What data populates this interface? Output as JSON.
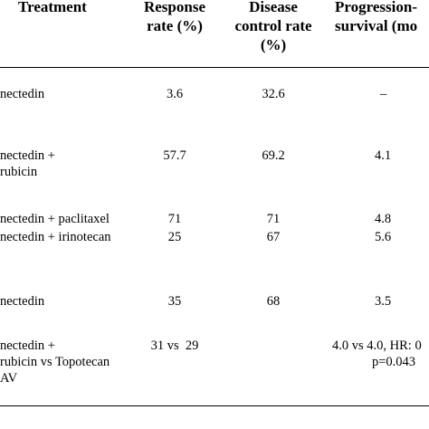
{
  "table": {
    "headers": {
      "treatment": "Treatment",
      "response_rate": [
        "Response",
        "rate (%)"
      ],
      "disease_control_rate": [
        "Disease",
        "control rate",
        "(%)"
      ],
      "pfs": [
        "Progression-",
        "survival (mo"
      ]
    },
    "rows": [
      {
        "treatment": [
          "nectedin"
        ],
        "response_rate": "3.6",
        "disease_control_rate": "32.6",
        "pfs": [
          "–"
        ]
      },
      {
        "treatment": [
          "nectedin +",
          "rubicin"
        ],
        "response_rate": "57.7",
        "disease_control_rate": "69.2",
        "pfs": [
          "4.1"
        ]
      },
      {
        "treatment": [
          "nectedin + paclitaxel"
        ],
        "response_rate": "71",
        "disease_control_rate": "71",
        "pfs": [
          "4.8"
        ]
      },
      {
        "treatment": [
          "nectedin + irinotecan"
        ],
        "response_rate": "25",
        "disease_control_rate": "67",
        "pfs": [
          "5.6"
        ]
      },
      {
        "treatment": [
          "nectedin"
        ],
        "response_rate": "35",
        "disease_control_rate": "68",
        "pfs": [
          "3.5"
        ]
      },
      {
        "treatment": [
          "nectedin +",
          "rubicin vs Topotecan",
          "AV"
        ],
        "response_rate": "31 vs  29",
        "disease_control_rate": "",
        "pfs": [
          "4.0 vs 4.0, HR: 0",
          "p=0.043"
        ]
      }
    ]
  }
}
